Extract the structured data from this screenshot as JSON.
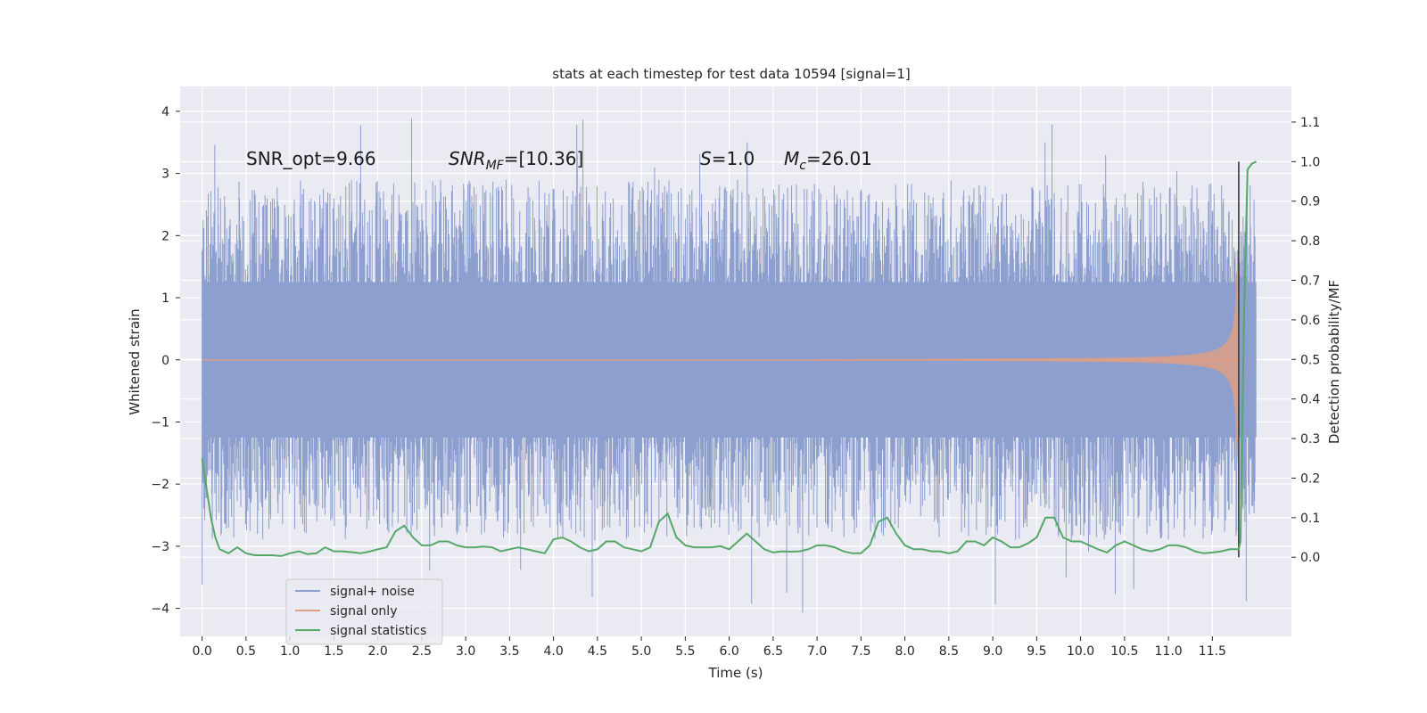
{
  "chart_data": {
    "type": "line",
    "title": "stats at each timestep for test data 10594 [signal=1]",
    "xlabel": "Time (s)",
    "ylabel": "Whitened strain",
    "y2label": "Detection probability/MF",
    "xlim": [
      -0.25,
      12.4
    ],
    "ylim": [
      -4.45,
      4.4
    ],
    "y2lim": [
      -0.2,
      1.19
    ],
    "x_ticks": [
      "0.0",
      "0.5",
      "1.0",
      "1.5",
      "2.0",
      "2.5",
      "3.0",
      "3.5",
      "4.0",
      "4.5",
      "5.0",
      "5.5",
      "6.0",
      "6.5",
      "7.0",
      "7.5",
      "8.0",
      "8.5",
      "9.0",
      "9.5",
      "10.0",
      "10.5",
      "11.0",
      "11.5"
    ],
    "y_ticks": [
      "4",
      "3",
      "2",
      "1",
      "0",
      "−1",
      "−2",
      "−3",
      "−4"
    ],
    "y2_ticks": [
      "1.1",
      "1.0",
      "0.9",
      "0.8",
      "0.7",
      "0.6",
      "0.5",
      "0.4",
      "0.3",
      "0.2",
      "0.1",
      "0.0"
    ],
    "grid": true,
    "legend_position": "lower-left",
    "annotations": {
      "snr_opt": "SNR_opt=9.66",
      "snr_mf_main": "SNR",
      "snr_mf_sub": "MF",
      "snr_mf_value": "=[10.36]",
      "s_symbol": "S",
      "s_value": "=1.0",
      "mc_symbol": "M",
      "mc_sub": "c",
      "mc_value": "=26.01"
    },
    "detection_time": 11.8,
    "series": [
      {
        "name": "signal+ noise",
        "color": "#8c9fce",
        "axis": "left",
        "t_range": [
          0.0,
          12.0
        ],
        "core_amplitude": 1.25,
        "peak_amplitude": 4.05
      },
      {
        "name": "signal only",
        "color": "#dd9f85",
        "axis": "left",
        "t_range": [
          0.0,
          11.8
        ],
        "peak_amplitude": 2.2
      },
      {
        "name": "signal statistics",
        "color": "#55a868",
        "axis": "right",
        "x": [
          0.0,
          0.1,
          0.15,
          0.2,
          0.3,
          0.4,
          0.5,
          0.6,
          0.7,
          0.8,
          0.9,
          1.0,
          1.1,
          1.2,
          1.3,
          1.4,
          1.5,
          1.6,
          1.7,
          1.8,
          1.9,
          2.0,
          2.1,
          2.2,
          2.3,
          2.4,
          2.5,
          2.6,
          2.7,
          2.8,
          2.9,
          3.0,
          3.1,
          3.2,
          3.3,
          3.4,
          3.5,
          3.6,
          3.7,
          3.8,
          3.9,
          4.0,
          4.1,
          4.2,
          4.3,
          4.4,
          4.5,
          4.6,
          4.7,
          4.8,
          4.9,
          5.0,
          5.1,
          5.2,
          5.3,
          5.4,
          5.5,
          5.6,
          5.7,
          5.8,
          5.9,
          6.0,
          6.1,
          6.2,
          6.3,
          6.4,
          6.5,
          6.6,
          6.7,
          6.8,
          6.9,
          7.0,
          7.1,
          7.2,
          7.3,
          7.4,
          7.5,
          7.6,
          7.7,
          7.8,
          7.9,
          8.0,
          8.1,
          8.2,
          8.3,
          8.4,
          8.5,
          8.6,
          8.7,
          8.8,
          8.9,
          9.0,
          9.1,
          9.2,
          9.3,
          9.4,
          9.5,
          9.6,
          9.7,
          9.8,
          9.9,
          10.0,
          10.1,
          10.2,
          10.3,
          10.4,
          10.5,
          10.6,
          10.7,
          10.8,
          10.9,
          11.0,
          11.1,
          11.2,
          11.3,
          11.4,
          11.5,
          11.6,
          11.7,
          11.8,
          11.82,
          11.86,
          11.9,
          11.95,
          12.0
        ],
        "y": [
          0.25,
          0.1,
          0.05,
          0.02,
          0.01,
          0.025,
          0.01,
          0.005,
          0.005,
          0.005,
          0.003,
          0.01,
          0.015,
          0.008,
          0.01,
          0.025,
          0.015,
          0.015,
          0.013,
          0.01,
          0.014,
          0.02,
          0.025,
          0.065,
          0.08,
          0.05,
          0.03,
          0.03,
          0.04,
          0.04,
          0.03,
          0.025,
          0.025,
          0.027,
          0.025,
          0.015,
          0.02,
          0.025,
          0.02,
          0.015,
          0.01,
          0.045,
          0.05,
          0.04,
          0.025,
          0.015,
          0.02,
          0.04,
          0.04,
          0.025,
          0.02,
          0.015,
          0.025,
          0.09,
          0.11,
          0.05,
          0.03,
          0.025,
          0.025,
          0.025,
          0.028,
          0.02,
          0.04,
          0.06,
          0.04,
          0.02,
          0.012,
          0.015,
          0.014,
          0.015,
          0.02,
          0.03,
          0.03,
          0.025,
          0.015,
          0.01,
          0.01,
          0.03,
          0.09,
          0.1,
          0.06,
          0.03,
          0.02,
          0.02,
          0.015,
          0.015,
          0.01,
          0.015,
          0.04,
          0.04,
          0.03,
          0.05,
          0.04,
          0.025,
          0.025,
          0.035,
          0.05,
          0.1,
          0.1,
          0.05,
          0.04,
          0.04,
          0.03,
          0.02,
          0.012,
          0.03,
          0.04,
          0.03,
          0.02,
          0.015,
          0.02,
          0.03,
          0.03,
          0.025,
          0.015,
          0.01,
          0.012,
          0.015,
          0.02,
          0.02,
          0.04,
          0.6,
          0.98,
          0.995,
          1.0
        ]
      }
    ]
  }
}
